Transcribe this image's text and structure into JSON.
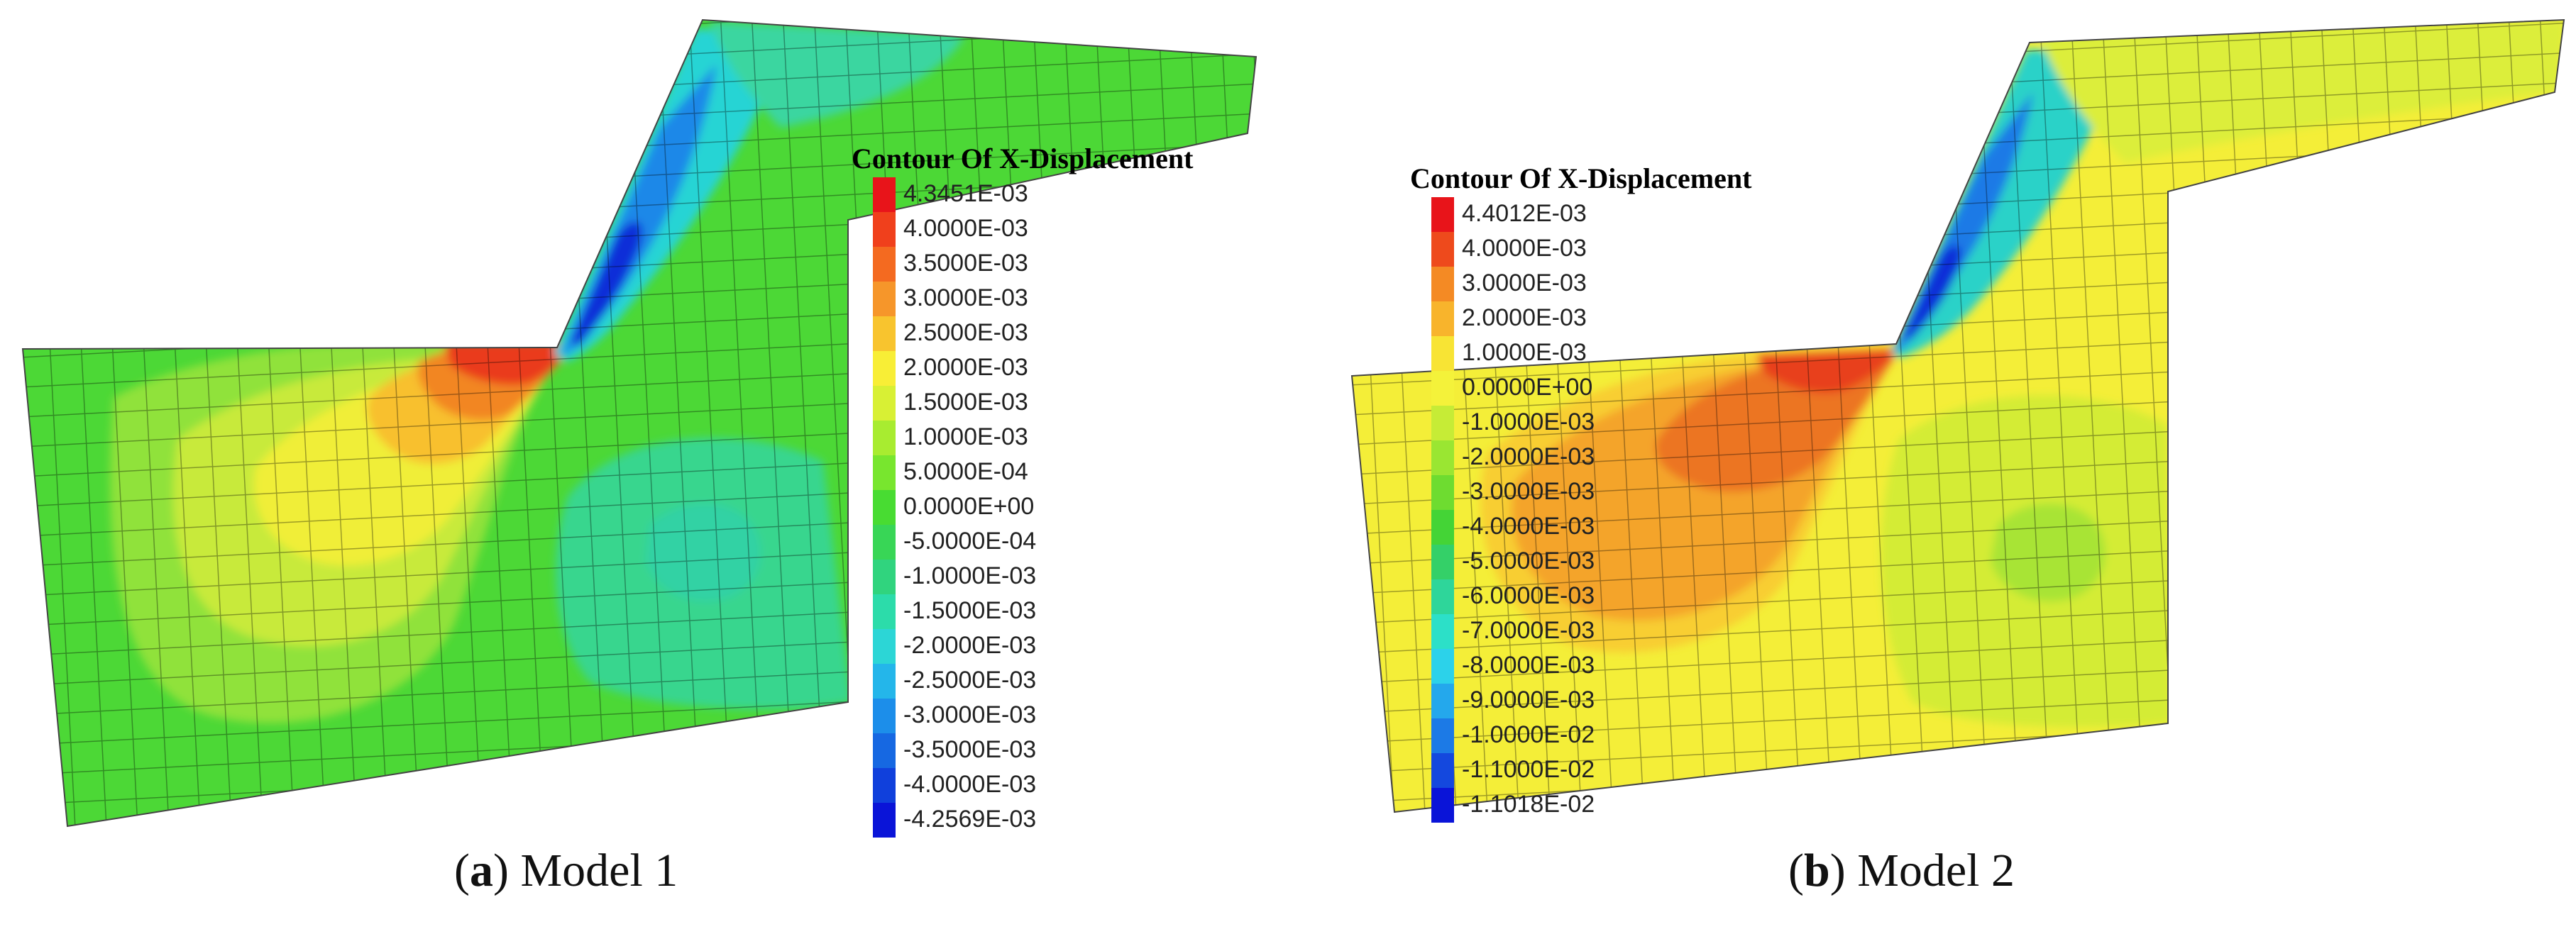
{
  "figure": {
    "panels": [
      {
        "id": "a",
        "caption_letter": "a",
        "caption_text": "Model 1",
        "legend_title": "Contour Of X-Displacement",
        "legend_labels": [
          "4.3451E-03",
          "4.0000E-03",
          "3.5000E-03",
          "3.0000E-03",
          "2.5000E-03",
          "2.0000E-03",
          "1.5000E-03",
          "1.0000E-03",
          "5.0000E-04",
          "0.0000E+00",
          "-5.0000E-04",
          "-1.0000E-03",
          "-1.5000E-03",
          "-2.0000E-03",
          "-2.5000E-03",
          "-3.0000E-03",
          "-3.5000E-03",
          "-4.0000E-03",
          "-4.2569E-03"
        ],
        "legend_colors": [
          "#e8141a",
          "#f0401c",
          "#f46a20",
          "#f6962a",
          "#f8c42e",
          "#f8ee36",
          "#d8f034",
          "#a8ec30",
          "#78e62e",
          "#48dc32",
          "#38d656",
          "#30d47e",
          "#2cdcaa",
          "#2cd6d6",
          "#24b6ea",
          "#1c8eea",
          "#1668e2",
          "#1040dc",
          "#0a14d8"
        ],
        "field": {
          "background": "#4cd836",
          "zones": [
            {
              "color": "#90e23a"
            },
            {
              "color": "#c8ea3a"
            },
            {
              "color": "#f0ee38"
            },
            {
              "color": "#f8c02e"
            },
            {
              "color": "#f28624"
            },
            {
              "color": "#ea3a1c"
            },
            {
              "color": "#38d68e"
            },
            {
              "color": "#30d2a4"
            },
            {
              "color": "#28d4d4"
            },
            {
              "color": "#1a88e8"
            },
            {
              "color": "#0c2ed8"
            },
            {
              "color": "#3ad6a0"
            }
          ]
        }
      },
      {
        "id": "b",
        "caption_letter": "b",
        "caption_text": "Model 2",
        "legend_title": "Contour Of X-Displacement",
        "legend_labels": [
          "4.4012E-03",
          "4.0000E-03",
          "3.0000E-03",
          "2.0000E-03",
          "1.0000E-03",
          "0.0000E+00",
          "-1.0000E-03",
          "-2.0000E-03",
          "-3.0000E-03",
          "-4.0000E-03",
          "-5.0000E-03",
          "-6.0000E-03",
          "-7.0000E-03",
          "-8.0000E-03",
          "-9.0000E-03",
          "-1.0000E-02",
          "-1.1000E-02",
          "-1.1018E-02"
        ],
        "legend_colors": [
          "#e8141a",
          "#ee4a1c",
          "#f48a24",
          "#f8b42c",
          "#f8e434",
          "#f4f23a",
          "#c6ec36",
          "#9ae632",
          "#6edc30",
          "#44d436",
          "#34d068",
          "#2ed69a",
          "#2ce0c8",
          "#2cd2ea",
          "#24a8ec",
          "#1c7ae6",
          "#1448de",
          "#0a14d8"
        ],
        "field": {
          "background": "#f4ee38",
          "zones": [
            {
              "color": "#f8ce30"
            },
            {
              "color": "#f4a42a"
            },
            {
              "color": "#ec7424"
            },
            {
              "color": "#e8401c"
            },
            {
              "color": "#d4ec36"
            },
            {
              "color": "#a8e436"
            },
            {
              "color": "#2cd2c8"
            },
            {
              "color": "#1a7ae6"
            },
            {
              "color": "#0c2ed8"
            },
            {
              "color": "#dcee3a"
            }
          ]
        }
      }
    ]
  }
}
